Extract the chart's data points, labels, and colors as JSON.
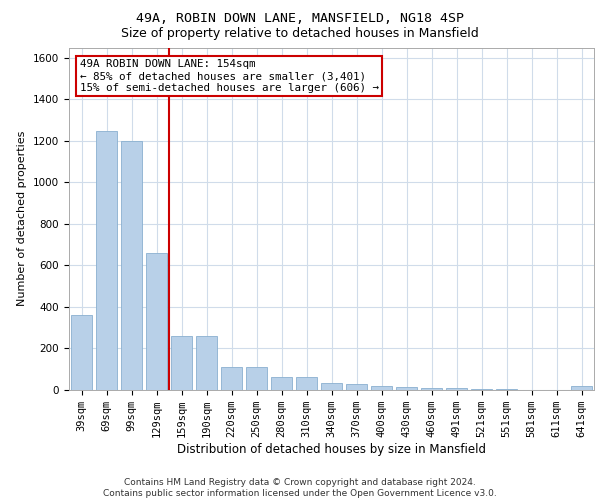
{
  "title_line1": "49A, ROBIN DOWN LANE, MANSFIELD, NG18 4SP",
  "title_line2": "Size of property relative to detached houses in Mansfield",
  "xlabel": "Distribution of detached houses by size in Mansfield",
  "ylabel": "Number of detached properties",
  "categories": [
    "39sqm",
    "69sqm",
    "99sqm",
    "129sqm",
    "159sqm",
    "190sqm",
    "220sqm",
    "250sqm",
    "280sqm",
    "310sqm",
    "340sqm",
    "370sqm",
    "400sqm",
    "430sqm",
    "460sqm",
    "491sqm",
    "521sqm",
    "551sqm",
    "581sqm",
    "611sqm",
    "641sqm"
  ],
  "values": [
    360,
    1250,
    1200,
    660,
    260,
    260,
    110,
    110,
    65,
    65,
    35,
    30,
    20,
    15,
    10,
    10,
    5,
    5,
    0,
    0,
    20
  ],
  "bar_color": "#b8d0e8",
  "bar_edge_color": "#8ab0d0",
  "grid_color": "#d0dcea",
  "vline_color": "#cc0000",
  "annotation_text": "49A ROBIN DOWN LANE: 154sqm\n← 85% of detached houses are smaller (3,401)\n15% of semi-detached houses are larger (606) →",
  "annotation_box_color": "#ffffff",
  "annotation_box_edge_color": "#cc0000",
  "ylim": [
    0,
    1650
  ],
  "yticks": [
    0,
    200,
    400,
    600,
    800,
    1000,
    1200,
    1400,
    1600
  ],
  "footer_text": "Contains HM Land Registry data © Crown copyright and database right 2024.\nContains public sector information licensed under the Open Government Licence v3.0.",
  "background_color": "#ffffff",
  "title1_fontsize": 9.5,
  "title2_fontsize": 9,
  "ylabel_fontsize": 8,
  "xlabel_fontsize": 8.5,
  "tick_fontsize": 7.5,
  "footer_fontsize": 6.5,
  "annot_fontsize": 7.8
}
